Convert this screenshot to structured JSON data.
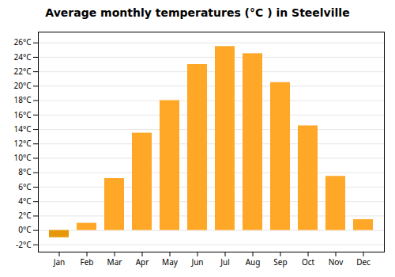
{
  "chart_data": {
    "type": "bar",
    "title": "Average monthly temperatures (°C ) in Steelville",
    "categories": [
      "Jan",
      "Feb",
      "Mar",
      "Apr",
      "May",
      "Jun",
      "Jul",
      "Aug",
      "Sep",
      "Oct",
      "Nov",
      "Dec"
    ],
    "values": [
      -1.0,
      1.0,
      7.2,
      13.5,
      18.0,
      23.0,
      25.5,
      24.5,
      20.5,
      14.5,
      7.5,
      1.5
    ],
    "colors": [
      "#E6980A",
      "#FFA726",
      "#FFA726",
      "#FFA726",
      "#FFA726",
      "#FFA726",
      "#FFA726",
      "#FFA726",
      "#FFA726",
      "#FFA726",
      "#FFA726",
      "#FFA726"
    ],
    "ylim": [
      -3.0,
      27.5
    ],
    "yticks": [
      {
        "value": -2,
        "label": "-2°C"
      },
      {
        "value": 0,
        "label": "0°C"
      },
      {
        "value": 2,
        "label": "2°C"
      },
      {
        "value": 4,
        "label": "4°C"
      },
      {
        "value": 6,
        "label": "6°C"
      },
      {
        "value": 8,
        "label": "8°C"
      },
      {
        "value": 10,
        "label": "10°C"
      },
      {
        "value": 12,
        "label": "12°C"
      },
      {
        "value": 14,
        "label": "14°C"
      },
      {
        "value": 16,
        "label": "16°C"
      },
      {
        "value": 18,
        "label": "18°C"
      },
      {
        "value": 20,
        "label": "20°C"
      },
      {
        "value": 22,
        "label": "22°C"
      },
      {
        "value": 24,
        "label": "24°C"
      },
      {
        "value": 26,
        "label": "26°C"
      }
    ],
    "grid": true
  }
}
